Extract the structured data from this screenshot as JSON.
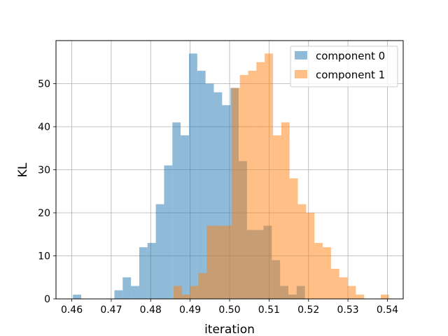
{
  "chart_data": {
    "type": "histogram",
    "xlabel": "iteration",
    "ylabel": "KL",
    "xlim": [
      0.456,
      0.544
    ],
    "ylim": [
      0,
      60
    ],
    "xticks": [
      0.46,
      0.47,
      0.48,
      0.49,
      0.5,
      0.51,
      0.52,
      0.53,
      0.54
    ],
    "xtick_labels": [
      "0.46",
      "0.47",
      "0.48",
      "0.49",
      "0.50",
      "0.51",
      "0.52",
      "0.53",
      "0.54"
    ],
    "yticks": [
      0,
      10,
      20,
      30,
      40,
      50
    ],
    "ytick_labels": [
      "0",
      "10",
      "20",
      "30",
      "40",
      "50"
    ],
    "grid": true,
    "legend_position": "top-right",
    "series": [
      {
        "name": "component 0",
        "color": "#1f77b4",
        "opacity": 0.5,
        "bin_start": 0.4603,
        "bin_width": 0.0021,
        "counts": [
          1,
          0,
          0,
          0,
          0,
          2,
          5,
          3,
          12,
          13,
          22,
          31,
          41,
          38,
          57,
          53,
          50,
          48,
          45,
          49,
          32,
          16,
          16,
          17,
          9,
          3,
          1,
          3
        ]
      },
      {
        "name": "component 1",
        "color": "#ff7f0e",
        "opacity": 0.5,
        "bin_start": 0.4858,
        "bin_width": 0.0021,
        "counts": [
          3,
          1,
          3,
          6,
          17,
          17,
          17,
          49,
          52,
          53,
          55,
          57,
          38,
          41,
          28,
          22,
          20,
          13,
          12,
          7,
          5,
          3,
          1,
          0,
          0,
          1
        ]
      }
    ]
  }
}
